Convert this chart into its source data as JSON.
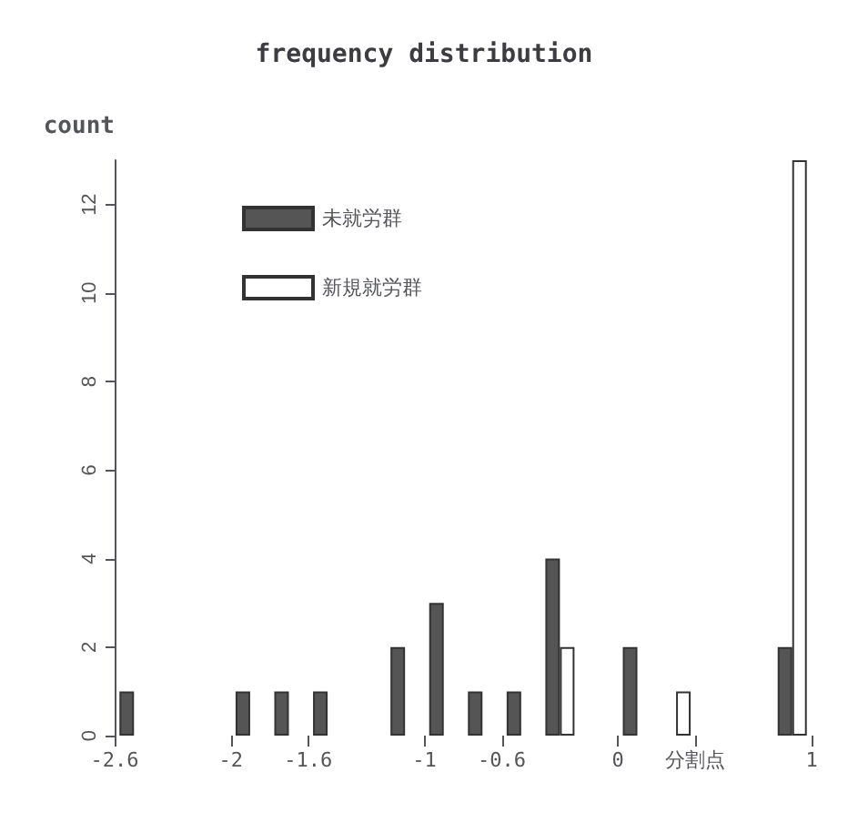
{
  "chart_data": {
    "type": "bar",
    "title": "frequency distribution",
    "ylabel": "count",
    "x": [
      -2.5,
      -2.3,
      -2.1,
      -1.9,
      -1.7,
      -1.5,
      -1.3,
      -1.1,
      -0.9,
      -0.7,
      -0.5,
      -0.3,
      -0.1,
      0.1,
      0.3,
      0.5,
      0.7,
      0.9
    ],
    "series": [
      {
        "name": "未就労群",
        "color": "#555555",
        "values": [
          1,
          0,
          0,
          1,
          1,
          1,
          0,
          2,
          3,
          1,
          1,
          4,
          0,
          2,
          0,
          0,
          0,
          2
        ]
      },
      {
        "name": "新規就労群",
        "color": "#ffffff",
        "values": [
          0,
          0,
          0,
          0,
          0,
          0,
          0,
          0,
          0,
          0,
          0,
          2,
          0,
          0,
          1,
          0,
          0,
          13
        ]
      }
    ],
    "xlim": [
      -2.6,
      1.0
    ],
    "xticks": [
      -2.6,
      -2,
      -1.6,
      -1,
      -0.6,
      0,
      {
        "value": 0.4,
        "label": "分割点"
      },
      1
    ],
    "ylim": [
      0,
      13
    ],
    "yticks": [
      0,
      2,
      4,
      6,
      8,
      10,
      12
    ],
    "grid": false,
    "legend": "top left"
  }
}
